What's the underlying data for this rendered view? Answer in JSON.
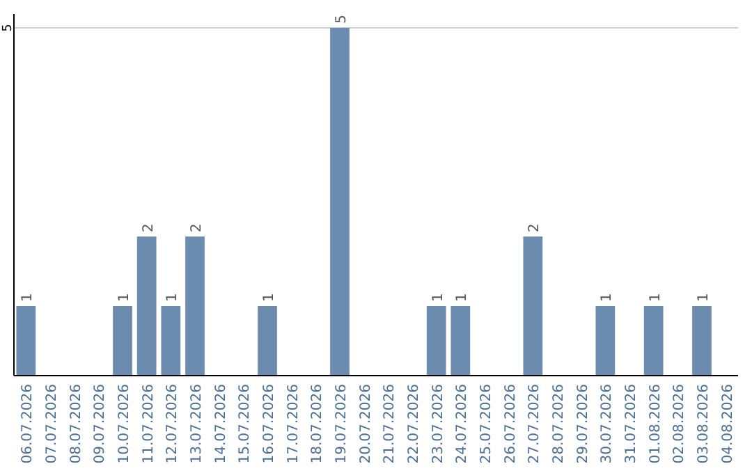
{
  "chart_data": {
    "type": "bar",
    "categories": [
      "06.07.2026",
      "07.07.2026",
      "08.07.2026",
      "09.07.2026",
      "10.07.2026",
      "11.07.2026",
      "12.07.2026",
      "13.07.2026",
      "14.07.2026",
      "15.07.2026",
      "16.07.2026",
      "17.07.2026",
      "18.07.2026",
      "19.07.2026",
      "20.07.2026",
      "21.07.2026",
      "22.07.2026",
      "23.07.2026",
      "24.07.2026",
      "25.07.2026",
      "26.07.2026",
      "27.07.2026",
      "28.07.2026",
      "29.07.2026",
      "30.07.2026",
      "31.07.2026",
      "01.08.2026",
      "02.08.2026",
      "03.08.2026",
      "04.08.2026"
    ],
    "values": [
      1,
      0,
      0,
      0,
      1,
      2,
      1,
      2,
      0,
      0,
      1,
      0,
      0,
      5,
      0,
      0,
      0,
      1,
      1,
      0,
      0,
      2,
      0,
      0,
      1,
      0,
      1,
      0,
      1,
      0
    ],
    "value_labels": [
      "1",
      null,
      null,
      null,
      "1",
      "2",
      "1",
      "2",
      null,
      null,
      "1",
      null,
      null,
      "5",
      null,
      null,
      null,
      "1",
      "1",
      null,
      null,
      "2",
      null,
      null,
      "1",
      null,
      "1",
      null,
      "1",
      null
    ],
    "color": "#6b8cae",
    "ylim": [
      0,
      5.2
    ],
    "yticks": [
      5
    ],
    "grid": "y"
  }
}
